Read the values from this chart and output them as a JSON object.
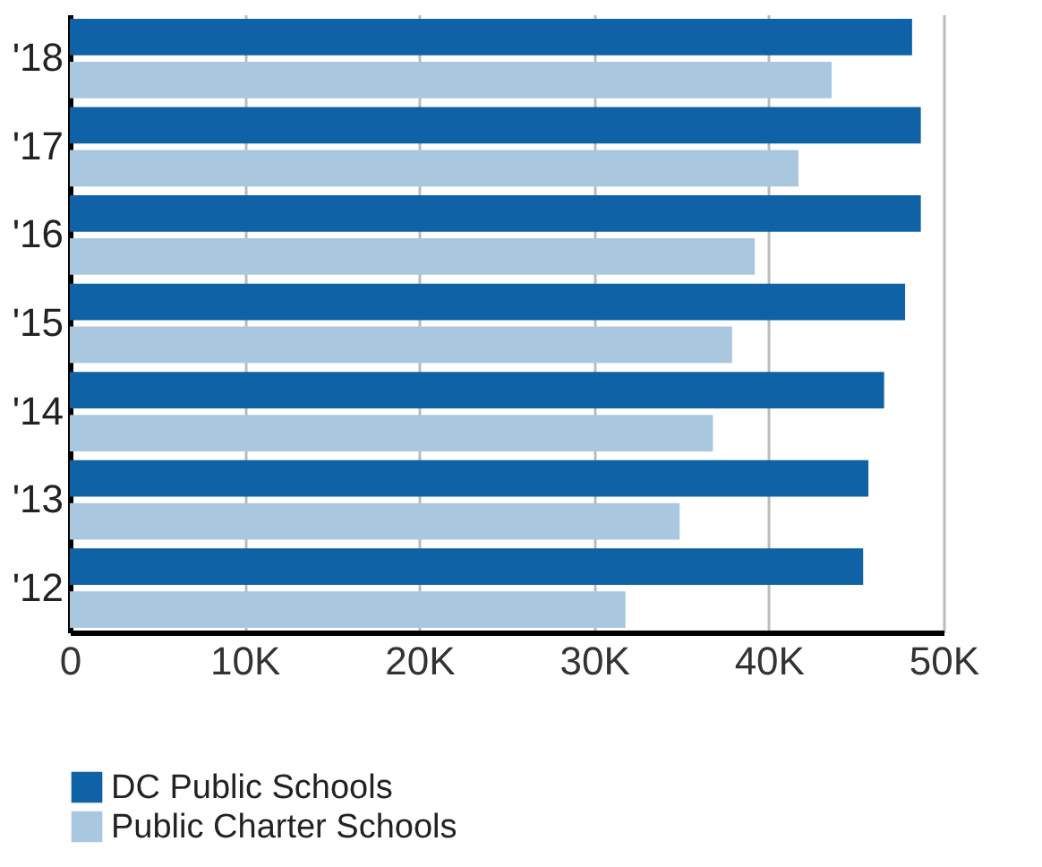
{
  "chart_data": {
    "type": "bar",
    "orientation": "horizontal",
    "categories": [
      "'18",
      "'17",
      "'16",
      "'15",
      "'14",
      "'13",
      "'12"
    ],
    "series": [
      {
        "name": "DC Public Schools",
        "color": "#0e62a5",
        "values": [
          48.2,
          48.7,
          48.7,
          47.8,
          46.6,
          45.7,
          45.4
        ]
      },
      {
        "name": "Public Charter Schools",
        "color": "#a9c8e0",
        "values": [
          43.6,
          41.7,
          39.2,
          37.9,
          36.8,
          34.9,
          31.8
        ]
      }
    ],
    "xlim": [
      0,
      50
    ],
    "xticks": [
      {
        "value": 0,
        "label": "0"
      },
      {
        "value": 10,
        "label": "10K"
      },
      {
        "value": 20,
        "label": "20K"
      },
      {
        "value": 30,
        "label": "30K"
      },
      {
        "value": 40,
        "label": "40K"
      },
      {
        "value": 50,
        "label": "50K"
      }
    ],
    "grid": "x",
    "legend": "bottom"
  }
}
